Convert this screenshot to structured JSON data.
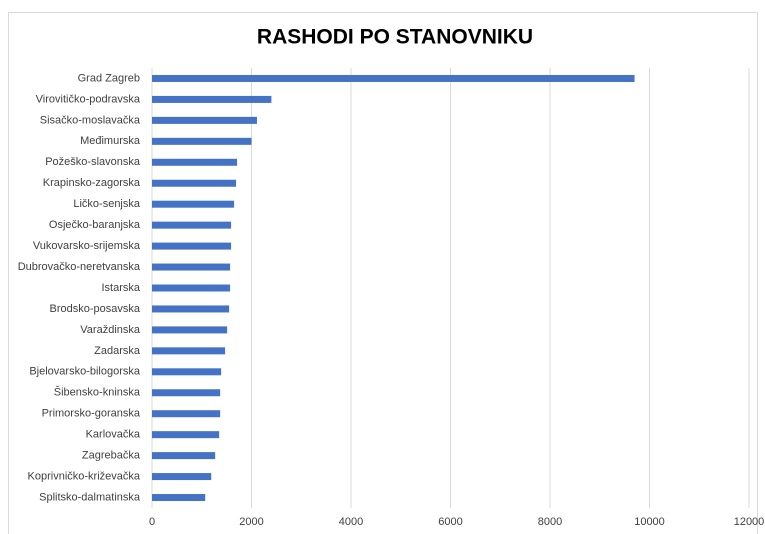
{
  "chart_data": {
    "type": "barh",
    "title": "RASHODI PO STANOVNIKU",
    "categories": [
      "Grad Zagreb",
      "Virovitičko-podravska",
      "Sisačko-moslavačka",
      "Međimurska",
      "Požeško-slavonska",
      "Krapinsko-zagorska",
      "Ličko-senjska",
      "Osječko-baranjska",
      "Vukovarsko-srijemska",
      "Dubrovačko-neretvanska",
      "Istarska",
      "Brodsko-posavska",
      "Varaždinska",
      "Zadarska",
      "Bjelovarsko-bilogorska",
      "Šibensko-kninska",
      "Primorsko-goranska",
      "Karlovačka",
      "Zagrebačka",
      "Koprivničko-križevačka",
      "Splitsko-dalmatinska"
    ],
    "values": [
      9700,
      2400,
      2110,
      2000,
      1710,
      1690,
      1650,
      1590,
      1590,
      1570,
      1570,
      1550,
      1510,
      1470,
      1390,
      1370,
      1370,
      1350,
      1270,
      1190,
      1070
    ],
    "color": "#4472c4",
    "xlim": [
      0,
      12000
    ],
    "xticks": [
      0,
      2000,
      4000,
      6000,
      8000,
      10000,
      12000
    ],
    "grid": true
  }
}
